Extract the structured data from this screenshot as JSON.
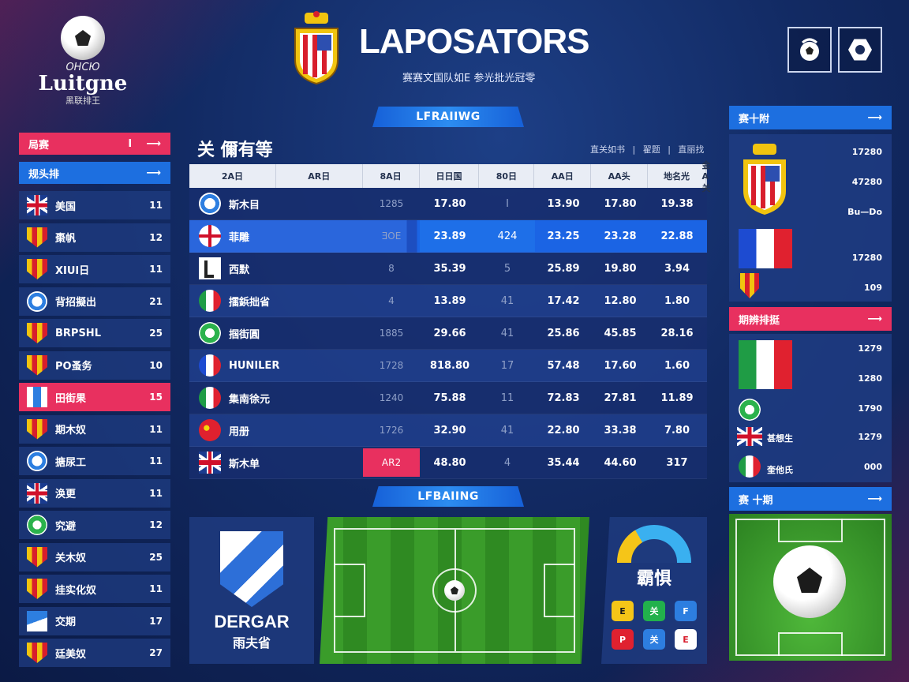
{
  "header": {
    "brand_small": "ОНСЮ",
    "brand_big": "Luitgne",
    "brand_sub": "黑联排王",
    "title": "LAPOSATORS",
    "subtitle": "赛赛文国队如E 参光批光冠零",
    "ribbon_top": "LFRAIIWG",
    "ribbon_mid": "LFBAIING"
  },
  "sidebar": {
    "buttons": [
      {
        "label": "局赛",
        "extra": "I",
        "arrow": "⟶",
        "color": "#e8305f"
      },
      {
        "label": "规头排",
        "extra": "",
        "arrow": "⟶",
        "color": "#1d6fe0"
      }
    ],
    "items": [
      {
        "icon": "uk-flag-icon",
        "label": "美国",
        "value": "11"
      },
      {
        "icon": "shield-crest-icon",
        "label": "棗帆",
        "value": "12"
      },
      {
        "icon": "shield-crest-icon",
        "label": "XIUI日",
        "value": "11"
      },
      {
        "icon": "round-crest-icon",
        "label": "背招擬出",
        "value": "21"
      },
      {
        "icon": "shield-crest-icon",
        "label": "BRPSHL",
        "value": "25"
      },
      {
        "icon": "shield-crest-icon",
        "label": "PO蚤务",
        "value": "10"
      },
      {
        "icon": "bar-crest-icon",
        "label": "田街果",
        "value": "15",
        "active": true
      },
      {
        "icon": "shield-crest-icon",
        "label": "期木奴",
        "value": "11"
      },
      {
        "icon": "round-crest-icon",
        "label": "搪尿工",
        "value": "11"
      },
      {
        "icon": "uk-flag-icon",
        "label": "涣更",
        "value": "11"
      },
      {
        "icon": "green-crest-icon",
        "label": "究避",
        "value": "12"
      },
      {
        "icon": "shield-crest-icon",
        "label": "关木奴",
        "value": "25"
      },
      {
        "icon": "shield-crest-icon",
        "label": "挂实化奴",
        "value": "11"
      },
      {
        "icon": "w-crest-icon",
        "label": "交期",
        "value": "17"
      },
      {
        "icon": "shield-crest-icon",
        "label": "廷美奴",
        "value": "27"
      }
    ]
  },
  "table": {
    "title": "关 儞有等",
    "meta": "直关如书 | 翟题 | 直丽找",
    "headers": [
      "2A日",
      "AR日",
      "8A日",
      "日日国",
      "80日",
      "AA日",
      "AA头",
      "地名光",
      "金A关"
    ],
    "rows": [
      {
        "icon": "round-crest-icon",
        "team": "斯木目",
        "c1": "1285",
        "c2": "17.80",
        "c3": "I",
        "c4": "13.90",
        "c5": "17.80",
        "c6": "19.38"
      },
      {
        "icon": "england-flag-icon",
        "team": "菲雕",
        "c1": "ƎOE",
        "c2": "23.89",
        "c3": "424",
        "c4": "23.25",
        "c5": "23.28",
        "c6": "22.88",
        "highlight": true
      },
      {
        "icon": "l-crest-icon",
        "team": "西默",
        "c1": "8",
        "c2": "35.39",
        "c3": "5",
        "c4": "25.89",
        "c5": "19.80",
        "c6": "3.94"
      },
      {
        "icon": "italy-flag-icon",
        "team": "擂鋲拙省",
        "c1": "4",
        "c2": "13.89",
        "c3": "41",
        "c4": "17.42",
        "c5": "12.80",
        "c6": "1.80"
      },
      {
        "icon": "green-crest-icon",
        "team": "掴街圓",
        "c1": "1885",
        "c2": "29.66",
        "c3": "41",
        "c4": "25.86",
        "c5": "45.85",
        "c6": "28.16"
      },
      {
        "icon": "france-flag-icon",
        "team": "HUNILER",
        "c1": "1728",
        "c2": "818.80",
        "c3": "17",
        "c4": "57.48",
        "c5": "17.60",
        "c6": "1.60"
      },
      {
        "icon": "italy-flag-icon",
        "team": "集南徐元",
        "c1": "1240",
        "c2": "75.88",
        "c3": "11",
        "c4": "72.83",
        "c5": "27.81",
        "c6": "11.89"
      },
      {
        "icon": "china-flag-icon",
        "team": "用册",
        "c1": "1726",
        "c2": "32.90",
        "c3": "41",
        "c4": "22.80",
        "c5": "33.38",
        "c6": "7.80"
      },
      {
        "icon": "uk-flag-icon",
        "team": "斯木单",
        "c1": "AR2",
        "c2": "48.80",
        "c3": "4",
        "c4": "35.44",
        "c5": "44.60",
        "c6": "317",
        "pink_c1": true
      }
    ]
  },
  "bottom": {
    "logo_text": "DERGAR",
    "logo_sub": "雨夫省",
    "apps_label": "霸惧",
    "apps": [
      {
        "label": "E",
        "bg": "#f5c518",
        "fg": "#1a1a1a"
      },
      {
        "label": "关",
        "bg": "#22b14c",
        "fg": "#ffffff"
      },
      {
        "label": "F",
        "bg": "#2d7ee0",
        "fg": "#ffffff"
      },
      {
        "label": "P",
        "bg": "#e0212f",
        "fg": "#ffffff"
      },
      {
        "label": "关",
        "bg": "#2d7ee0",
        "fg": "#ffffff"
      },
      {
        "label": "E",
        "bg": "#ffffff",
        "fg": "#d81e2c"
      }
    ]
  },
  "right": {
    "panel1": {
      "header": "赛十附",
      "values": [
        "17280",
        "47280",
        "Bu—Do",
        "17280",
        "109"
      ]
    },
    "panel2": {
      "header": "期辨排挺",
      "values": [
        "1279",
        "1280",
        "1790",
        "1279",
        "000"
      ],
      "row_labels": [
        "甚想生",
        "奎他氏"
      ]
    },
    "panel3": {
      "header": "赛 十期"
    }
  }
}
